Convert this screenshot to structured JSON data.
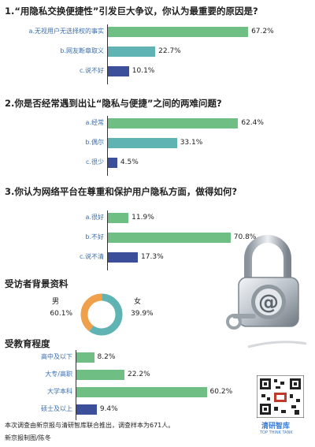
{
  "colors": {
    "green": "#6fbf84",
    "blue": "#3b4f9a",
    "orange": "#f0a04b",
    "teal": "#5fb3b3",
    "axis": "#333333",
    "catText": "#3a6fb0"
  },
  "q1": {
    "title": "1.“用隐私交换便捷性”引发巨大争议，你认为最重要的原因是?"
  },
  "q2": {
    "title": "2.你是否经常遇到出让“隐私与便捷”之间的两难问题?"
  },
  "q3": {
    "title": "3.你认为网络平台在尊重和保护用户隐私方面，做得如何?"
  },
  "bg": {
    "title": "受访者背景资料",
    "male": "男",
    "male_pct": "60.1%",
    "female": "女",
    "female_pct": "39.9%"
  },
  "edu": {
    "title": "受教育程度"
  },
  "footer": {
    "line1": "本次调查由新京报与清研智库联合推出，调查样本为671人。",
    "line2": "新京报制图/陈冬"
  },
  "logo": {
    "text": "清研智库",
    "sub": "TOP THINK TANK"
  },
  "chart_data": [
    {
      "type": "bar",
      "categories": [
        "a.无视用户无选择权的事实",
        "b.网友断章取义",
        "c.说不好"
      ],
      "values": [
        67.2,
        22.7,
        10.1
      ],
      "labels": [
        "67.2%",
        "22.7%",
        "10.1%"
      ],
      "colors": [
        "green",
        "teal",
        "blue"
      ]
    },
    {
      "type": "bar",
      "categories": [
        "a.经常",
        "b.偶尔",
        "c.很少"
      ],
      "values": [
        62.4,
        33.1,
        4.5
      ],
      "labels": [
        "62.4%",
        "33.1%",
        "4.5%"
      ],
      "colors": [
        "green",
        "teal",
        "blue"
      ]
    },
    {
      "type": "bar",
      "categories": [
        "a.很好",
        "b.不好",
        "c.说不清"
      ],
      "values": [
        11.9,
        70.8,
        17.3
      ],
      "labels": [
        "11.9%",
        "70.8%",
        "17.3%"
      ],
      "colors": [
        "green",
        "green",
        "blue"
      ]
    },
    {
      "type": "pie",
      "categories": [
        "男",
        "女"
      ],
      "values": [
        60.1,
        39.9
      ],
      "colors": [
        "teal",
        "orange"
      ]
    },
    {
      "type": "bar",
      "categories": [
        "高中及以下",
        "大专/高职",
        "大学本科",
        "硕士及以上"
      ],
      "values": [
        8.2,
        22.2,
        60.2,
        9.4
      ],
      "labels": [
        "8.2%",
        "22.2%",
        "60.2%",
        "9.4%"
      ],
      "colors": [
        "green",
        "green",
        "green",
        "blue"
      ]
    }
  ]
}
